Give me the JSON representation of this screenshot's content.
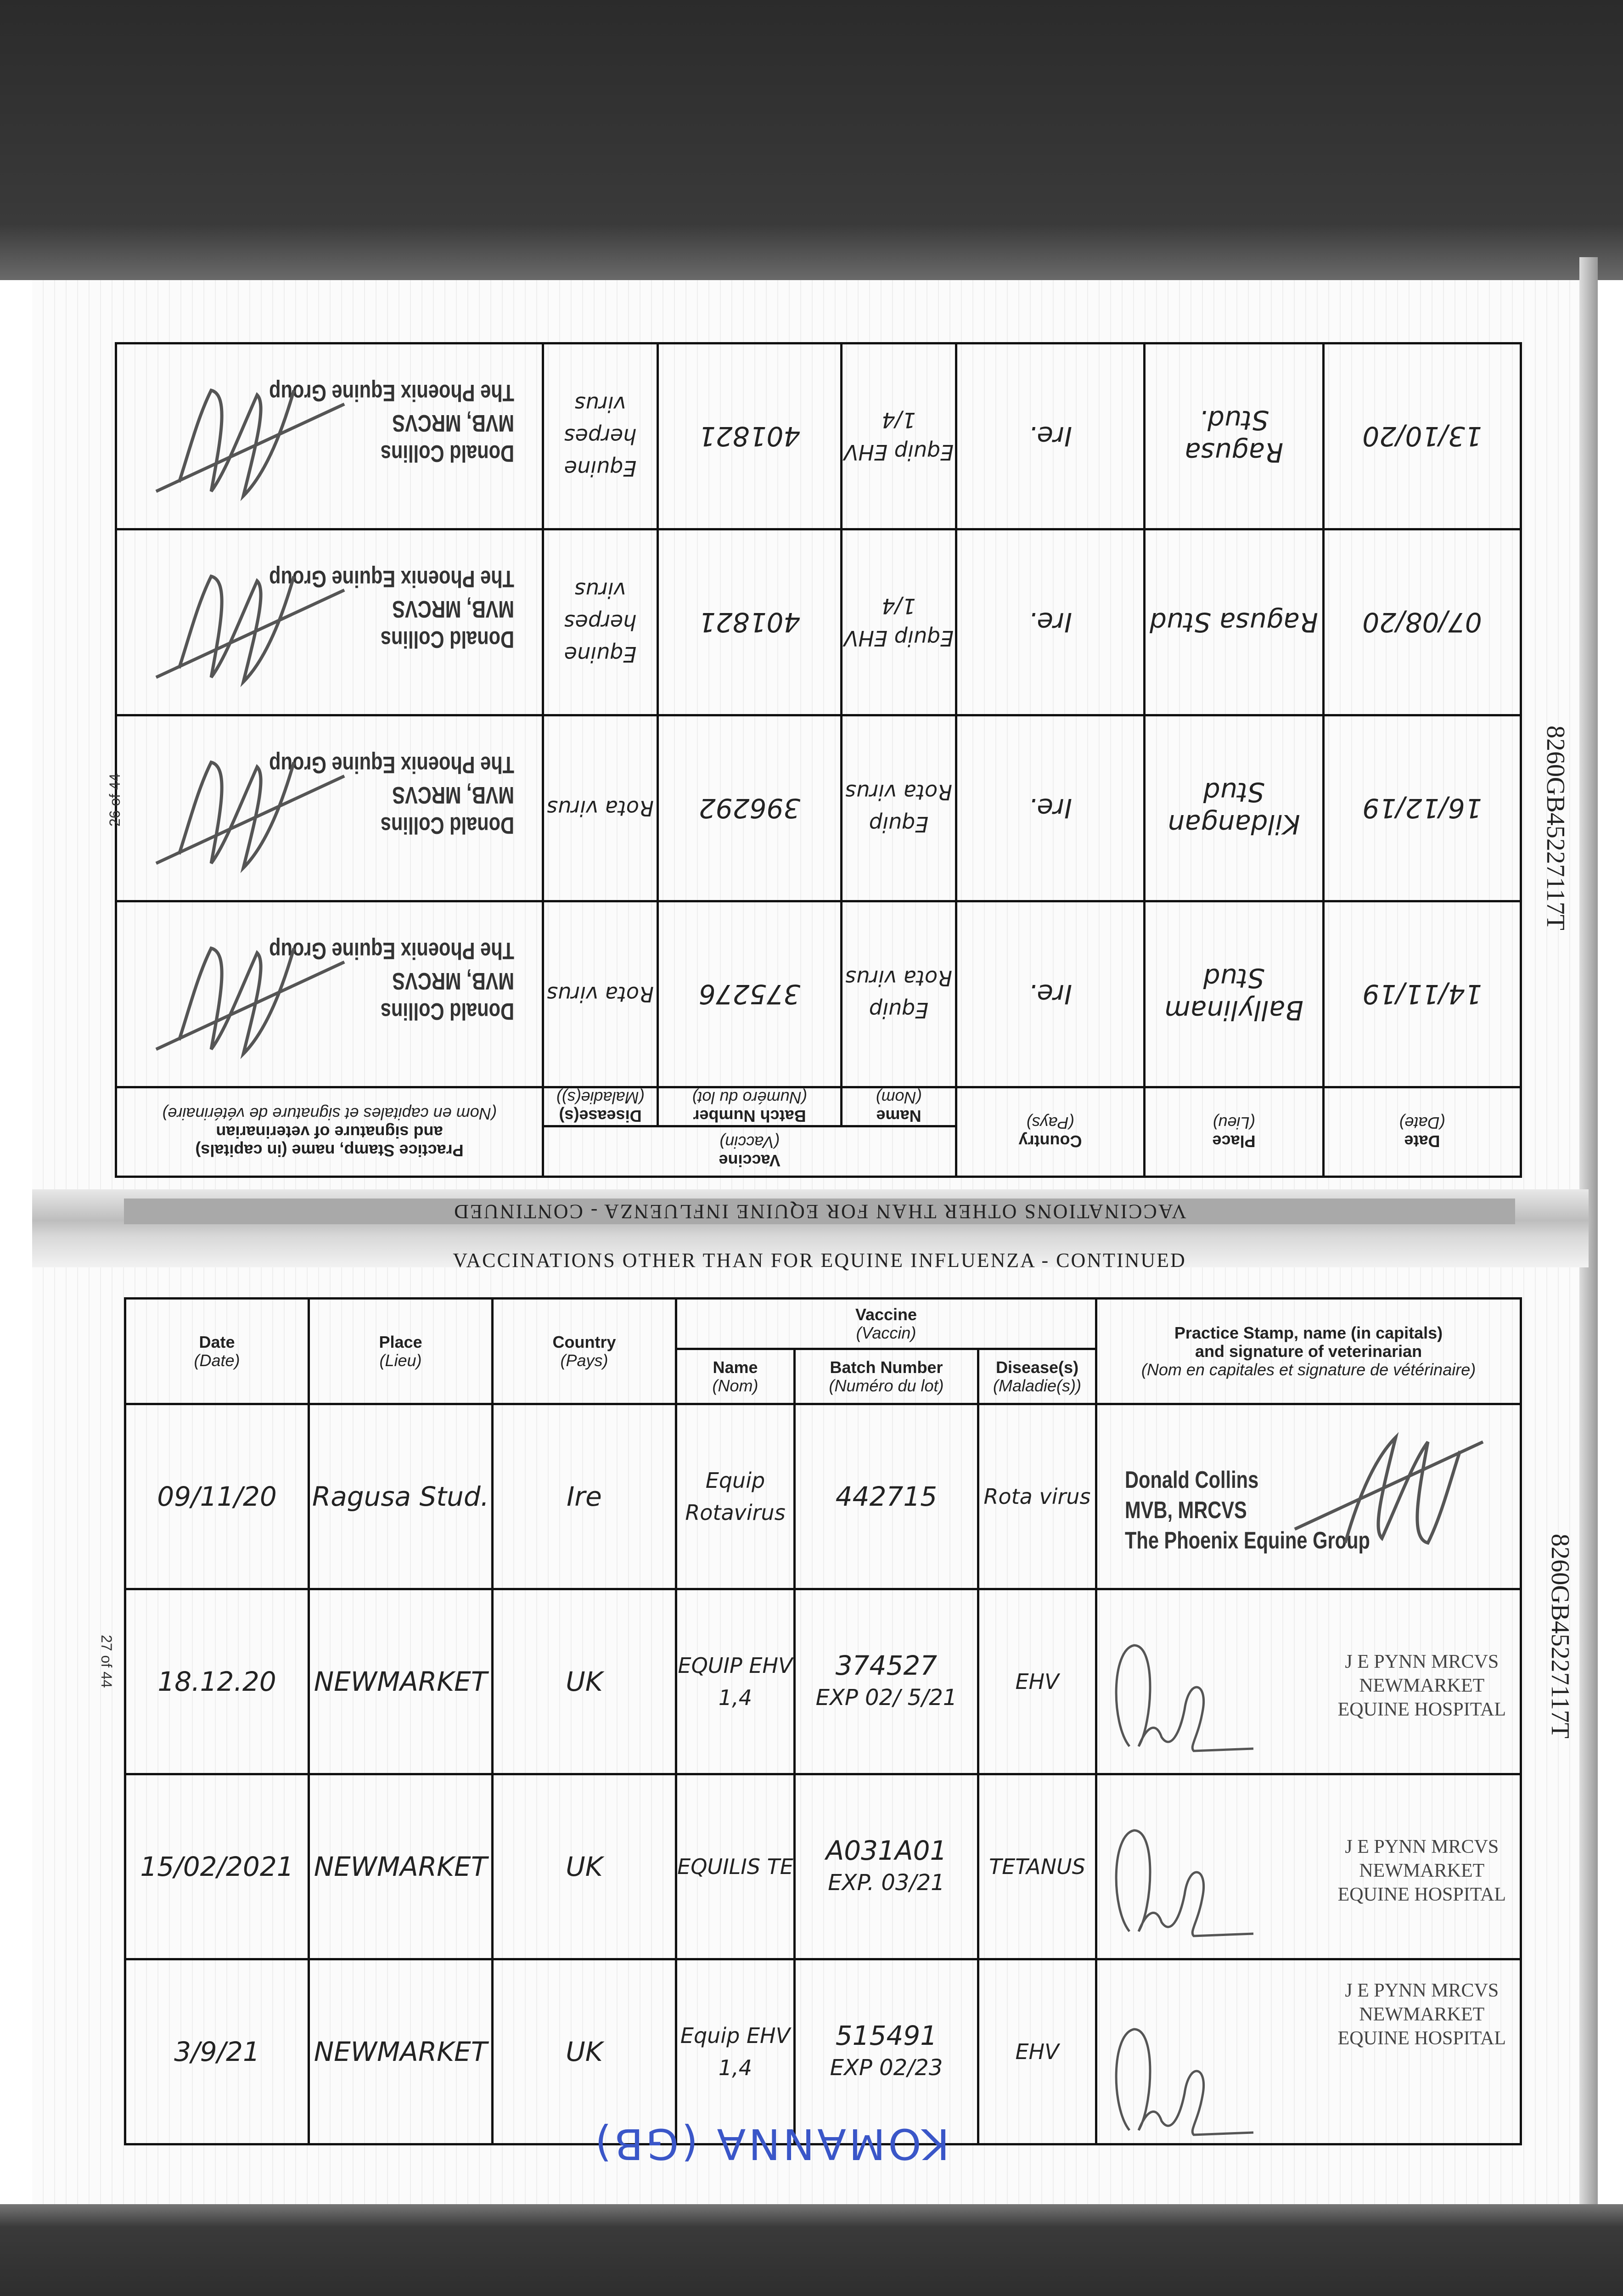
{
  "document": {
    "horse_id": "8260GB45227117T",
    "page_left": "26 of 44",
    "page_right": "27 of 44",
    "section_title": "VACCINATIONS OTHER THAN FOR EQUINE INFLUENZA - CONTINUED",
    "handwritten_note": "KOMANNA (GB)"
  },
  "headers": {
    "date": "Date",
    "date_fr": "(Date)",
    "place": "Place",
    "place_fr": "(Lieu)",
    "country": "Country",
    "country_fr": "(Pays)",
    "vaccine": "Vaccine",
    "vaccine_fr": "(Vaccin)",
    "name": "Name",
    "name_fr": "(Nom)",
    "batch": "Batch Number",
    "batch_fr": "(Numéro du lot)",
    "disease": "Disease(s)",
    "disease_fr": "(Maladie(s))",
    "stamp": "Practice Stamp, name (in capitals)",
    "stamp2": "and signature of veterinarian",
    "stamp_fr": "(Nom en capitales et signature de vétérinaire)"
  },
  "upper_page": {
    "orientation": "upside-down",
    "rows": [
      {
        "date": "14/11/19",
        "place": "Ballylinam Stud",
        "country": "Ire.",
        "name": "Equip Rota virus",
        "batch": "375276",
        "disease": "Rota virus",
        "stamp": [
          "Donald Collins",
          "MVB, MRCVS",
          "The Phoenix Equine Group"
        ]
      },
      {
        "date": "16/12/19",
        "place": "Kildangan Stud",
        "country": "Ire.",
        "name": "Equip Rota virus",
        "batch": "396292",
        "disease": "Rota virus",
        "stamp": [
          "Donald Collins",
          "MVB, MRCVS",
          "The Phoenix Equine Group"
        ]
      },
      {
        "date": "07/08/20",
        "place": "Ragusa Stud",
        "country": "Ire.",
        "name": "Equip EHV 1/4",
        "batch": "401821",
        "disease": "Equine herpes virus",
        "stamp": [
          "Donald Collins",
          "MVB, MRCVS",
          "The Phoenix Equine Group"
        ]
      },
      {
        "date": "13/10/20",
        "place": "Ragusa Stud.",
        "country": "Ire.",
        "name": "Equip EHV 1/4",
        "batch": "401821",
        "disease": "Equine herpes virus",
        "stamp": [
          "Donald Collins",
          "MVB, MRCVS",
          "The Phoenix Equine Group"
        ]
      }
    ]
  },
  "lower_page": {
    "rows": [
      {
        "date": "09/11/20",
        "place": "Ragusa Stud.",
        "country": "Ire",
        "name": "Equip Rotavirus",
        "batch": "442715",
        "batch_exp": "",
        "disease": "Rota virus",
        "stamp": [
          "Donald Collins",
          "MVB, MRCVS",
          "The Phoenix Equine Group"
        ]
      },
      {
        "date": "18.12.20",
        "place": "NEWMARKET",
        "country": "UK",
        "name": "EQUIP EHV 1,4",
        "batch": "374527",
        "batch_exp": "EXP 02/ 5/21",
        "disease": "EHV",
        "stamp": [
          "J E PYNN MRCVS",
          "NEWMARKET",
          "EQUINE HOSPITAL"
        ]
      },
      {
        "date": "15/02/2021",
        "place": "NEWMARKET",
        "country": "UK",
        "name": "EQUILIS TE",
        "batch": "A031A01",
        "batch_exp": "EXP. 03/21",
        "disease": "TETANUS",
        "stamp": [
          "J E PYNN MRCVS",
          "NEWMARKET",
          "EQUINE HOSPITAL"
        ]
      },
      {
        "date": "3/9/21",
        "place": "NEWMARKET",
        "country": "UK",
        "name": "Equip EHV 1,4",
        "batch": "515491",
        "batch_exp": "EXP 02/23",
        "disease": "EHV",
        "stamp": [
          "J E PYNN MRCVS",
          "NEWMARKET",
          "EQUINE HOSPITAL"
        ]
      }
    ]
  },
  "colors": {
    "ink": "#222222",
    "blue_pen": "#3a56c8",
    "scan_border": "#2e2e2e"
  }
}
